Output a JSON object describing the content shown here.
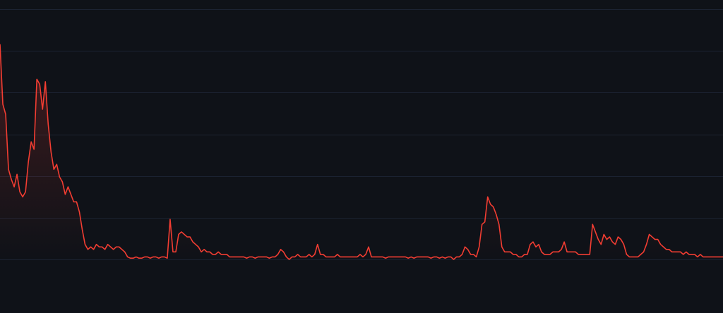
{
  "chart_data": {
    "type": "line",
    "title": "",
    "xlabel": "",
    "ylabel": "",
    "grid": true,
    "legend": "none",
    "ylim": [
      0,
      100
    ],
    "y_gridlines": [
      0,
      16.7,
      33.3,
      50,
      66.7,
      83.3,
      100
    ],
    "colors": {
      "background": "#0f1218",
      "grid": "#1c2332",
      "line": "#f23d32",
      "area_fill": "#f23d32"
    },
    "series": [
      {
        "x": [
          0,
          1,
          2,
          3,
          4,
          5,
          6,
          7,
          8,
          9,
          10,
          11,
          12,
          13,
          14,
          15,
          16,
          17,
          18,
          19,
          20,
          21,
          22,
          23,
          24,
          25,
          26,
          27,
          28,
          29,
          30,
          31,
          32,
          33,
          34,
          35,
          36,
          37,
          38,
          39,
          40,
          41,
          42,
          43,
          44,
          45,
          46,
          47,
          48,
          49,
          50,
          51,
          52,
          53,
          54,
          55,
          56,
          57,
          58,
          59,
          60,
          61,
          62,
          63,
          64,
          65,
          66,
          67,
          68,
          69,
          70,
          71,
          72,
          73,
          74,
          75,
          76,
          77,
          78,
          79,
          80,
          81,
          82,
          83,
          84,
          85,
          86,
          87,
          88,
          89,
          90,
          91,
          92,
          93,
          94,
          95,
          96,
          97,
          98,
          99,
          100,
          101,
          102,
          103,
          104,
          105,
          106,
          107,
          108,
          109,
          110,
          111,
          112,
          113,
          114,
          115,
          116,
          117,
          118,
          119,
          120,
          121,
          122,
          123,
          124,
          125,
          126,
          127,
          128,
          129,
          130,
          131,
          132,
          133,
          134,
          135,
          136,
          137,
          138,
          139,
          140,
          141,
          142,
          143,
          144,
          145,
          146,
          147,
          148,
          149,
          150,
          151,
          152,
          153,
          154,
          155,
          156,
          157,
          158,
          159,
          160,
          161,
          162,
          163,
          164,
          165,
          166,
          167,
          168,
          169,
          170,
          171,
          172,
          173,
          174,
          175,
          176,
          177,
          178,
          179,
          180,
          181,
          182,
          183,
          184,
          185,
          186,
          187,
          188,
          189,
          190,
          191,
          192,
          193,
          194,
          195,
          196,
          197,
          198,
          199,
          200,
          201,
          202,
          203,
          204,
          205,
          206,
          207,
          208,
          209,
          210,
          211,
          212,
          213,
          214,
          215,
          216,
          217,
          218,
          219,
          220,
          221,
          222,
          223,
          224,
          225,
          226,
          227,
          228,
          229,
          230,
          231,
          232,
          233,
          234,
          235,
          236,
          237,
          238,
          239,
          240,
          241,
          242,
          243,
          244,
          245,
          246,
          247,
          248,
          249,
          250,
          251,
          252,
          253,
          254,
          255
        ],
        "values": [
          86,
          62,
          58,
          36,
          32,
          29,
          34,
          27,
          25,
          27,
          39,
          47,
          44,
          72,
          70,
          60,
          71,
          54,
          43,
          36,
          38,
          33,
          31,
          26,
          29,
          26,
          23,
          23,
          19,
          12,
          6,
          4,
          5,
          4,
          6,
          5,
          5,
          4,
          6,
          5,
          4,
          5,
          5,
          4,
          3,
          1,
          0.5,
          0.5,
          1,
          0.5,
          0.5,
          1,
          1,
          0.5,
          1,
          1,
          0.5,
          1,
          1,
          0.5,
          16,
          3,
          3,
          10,
          11,
          10,
          9,
          9,
          7,
          6,
          5,
          3,
          4,
          3,
          3,
          2,
          2,
          3,
          2,
          2,
          2,
          1,
          1,
          1,
          1,
          1,
          1,
          0.5,
          1,
          1,
          0.5,
          1,
          1,
          1,
          1,
          0.5,
          1,
          1,
          2,
          4,
          3,
          1,
          0,
          1,
          1,
          2,
          1,
          1,
          1,
          2,
          1,
          2,
          6,
          2,
          2,
          1,
          1,
          1,
          1,
          2,
          1,
          1,
          1,
          1,
          1,
          1,
          1,
          2,
          1,
          2,
          5,
          1,
          1,
          1,
          1,
          1,
          0.5,
          1,
          1,
          1,
          1,
          1,
          1,
          1,
          0.5,
          1,
          0.5,
          1,
          1,
          1,
          1,
          1,
          0.5,
          1,
          1,
          0.5,
          1,
          0.5,
          1,
          1,
          0,
          1,
          1,
          2,
          5,
          4,
          2,
          2,
          1,
          5,
          14,
          15,
          25,
          22,
          21,
          18,
          14,
          5,
          3,
          3,
          3,
          2,
          2,
          1,
          1,
          2,
          2,
          6,
          7,
          5,
          6,
          3,
          2,
          2,
          2,
          3,
          3,
          3,
          4,
          7,
          3,
          3,
          3,
          3,
          2,
          2,
          2,
          2,
          2,
          14,
          11,
          8,
          6,
          10,
          8,
          9,
          7,
          6,
          9,
          8,
          6,
          2,
          1,
          1,
          1,
          1,
          2,
          3,
          6,
          10,
          9,
          8,
          8,
          6,
          5,
          4,
          4,
          3,
          3,
          3,
          3,
          2,
          3,
          2,
          2,
          2,
          1,
          2,
          1,
          1,
          1,
          1,
          1,
          1,
          1,
          1
        ]
      }
    ]
  }
}
